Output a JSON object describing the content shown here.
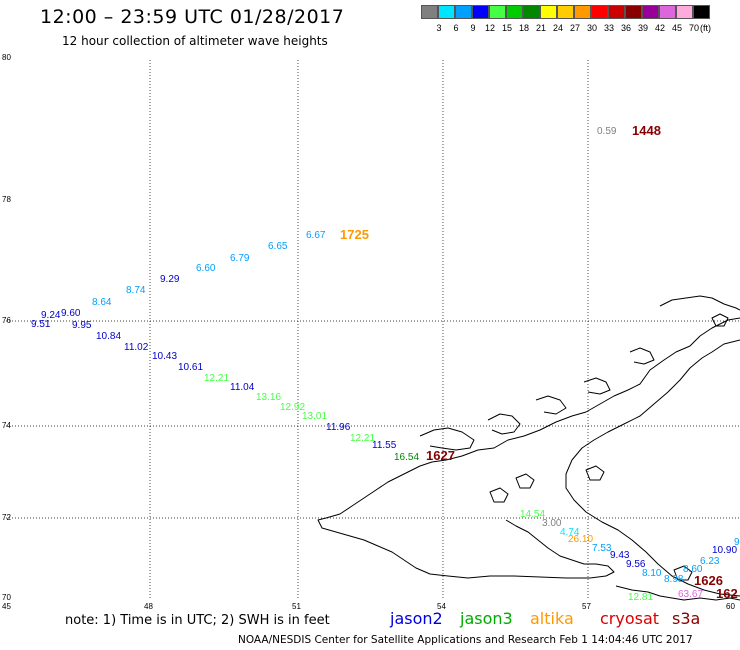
{
  "title": "12:00 – 23:59 UTC 01/28/2017",
  "subtitle": "12 hour collection of altimeter wave heights",
  "legend": {
    "unit": "(ft)",
    "bins": [
      {
        "label": "3",
        "color": "#808080"
      },
      {
        "label": "6",
        "color": "#00e5ff"
      },
      {
        "label": "9",
        "color": "#00a0ff"
      },
      {
        "label": "12",
        "color": "#0000ff"
      },
      {
        "label": "15",
        "color": "#44ff44"
      },
      {
        "label": "18",
        "color": "#00cc00"
      },
      {
        "label": "21",
        "color": "#008800"
      },
      {
        "label": "24",
        "color": "#ffff00"
      },
      {
        "label": "27",
        "color": "#ffcc00"
      },
      {
        "label": "30",
        "color": "#ff9900"
      },
      {
        "label": "33",
        "color": "#ff0000"
      },
      {
        "label": "36",
        "color": "#cc0000"
      },
      {
        "label": "39",
        "color": "#880000"
      },
      {
        "label": "42",
        "color": "#990099"
      },
      {
        "label": "45",
        "color": "#dd66dd"
      },
      {
        "label": "70",
        "color": "#ffaadd"
      },
      {
        "label": "",
        "color": "#000000"
      }
    ]
  },
  "axes": {
    "lat_ticks": [
      "80",
      "78",
      "76",
      "74",
      "72",
      "70"
    ],
    "lon_ticks": [
      "45",
      "48",
      "51",
      "54",
      "57",
      "60"
    ]
  },
  "observations": [
    {
      "text": "0.59",
      "color": "#808080"
    },
    {
      "text": "1448",
      "color": "#880000"
    },
    {
      "text": "6.67",
      "color": "#00a0ff"
    },
    {
      "text": "1725",
      "color": "#ff9900"
    },
    {
      "text": "6.65",
      "color": "#00a0ff"
    },
    {
      "text": "6.79",
      "color": "#00a0ff"
    },
    {
      "text": "6.60",
      "color": "#00a0ff"
    },
    {
      "text": "9.29",
      "color": "#0000cc"
    },
    {
      "text": "8.74",
      "color": "#00a0ff"
    },
    {
      "text": "8.64",
      "color": "#00a0ff"
    },
    {
      "text": "9.24",
      "color": "#0000cc"
    },
    {
      "text": "9.60",
      "color": "#0000cc"
    },
    {
      "text": "9.51",
      "color": "#0000cc"
    },
    {
      "text": "9.95",
      "color": "#0000cc"
    },
    {
      "text": "10.84",
      "color": "#0000cc"
    },
    {
      "text": "11.02",
      "color": "#0000cc"
    },
    {
      "text": "10.43",
      "color": "#0000cc"
    },
    {
      "text": "10.61",
      "color": "#0000cc"
    },
    {
      "text": "12.21",
      "color": "#44ff44"
    },
    {
      "text": "11.04",
      "color": "#0000cc"
    },
    {
      "text": "13.16",
      "color": "#44ff44"
    },
    {
      "text": "12.92",
      "color": "#44ff44"
    },
    {
      "text": "13.01",
      "color": "#44ff44"
    },
    {
      "text": "11.96",
      "color": "#0000cc"
    },
    {
      "text": "12.21",
      "color": "#44ff44"
    },
    {
      "text": "11.55",
      "color": "#0000cc"
    },
    {
      "text": "16.54",
      "color": "#008800"
    },
    {
      "text": "1627",
      "color": "#880000"
    },
    {
      "text": "14.54",
      "color": "#44ff44"
    },
    {
      "text": "3.00",
      "color": "#808080"
    },
    {
      "text": "4.74",
      "color": "#00e5ff"
    },
    {
      "text": "26.10",
      "color": "#ff9900"
    },
    {
      "text": "7.53",
      "color": "#00a0ff"
    },
    {
      "text": "9.43",
      "color": "#0000cc"
    },
    {
      "text": "9.56",
      "color": "#0000cc"
    },
    {
      "text": "8.10",
      "color": "#00a0ff"
    },
    {
      "text": "8.60",
      "color": "#00a0ff"
    },
    {
      "text": "6.23",
      "color": "#00a0ff"
    },
    {
      "text": "10.90",
      "color": "#0000cc"
    },
    {
      "text": "9",
      "color": "#00a0ff"
    },
    {
      "text": "8.98",
      "color": "#00a0ff"
    },
    {
      "text": "1626",
      "color": "#880000"
    },
    {
      "text": "12.81",
      "color": "#44ff44"
    },
    {
      "text": "63.67",
      "color": "#dd66dd"
    },
    {
      "text": "162",
      "color": "#880000"
    }
  ],
  "note": "note: 1) Time is in UTC; 2) SWH is in feet",
  "satellites": [
    {
      "name": "jason2",
      "color": "#0000dd"
    },
    {
      "name": "jason3",
      "color": "#00aa00"
    },
    {
      "name": "altika",
      "color": "#ff9900"
    },
    {
      "name": "cryosat",
      "color": "#dd0000"
    },
    {
      "name": "s3a",
      "color": "#880000"
    }
  ],
  "credit": "NOAA/NESDIS Center for Satellite Applications and Research   Feb  1 14:04:46 UTC 2017"
}
